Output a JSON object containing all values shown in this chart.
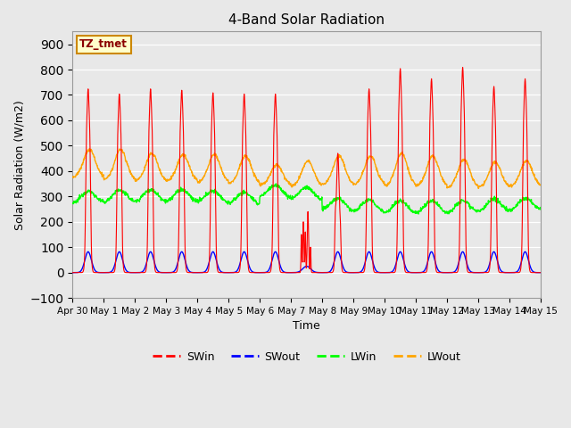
{
  "title": "4-Band Solar Radiation",
  "xlabel": "Time",
  "ylabel": "Solar Radiation (W/m2)",
  "ylim": [
    -100,
    950
  ],
  "yticks": [
    -100,
    0,
    100,
    200,
    300,
    400,
    500,
    600,
    700,
    800,
    900
  ],
  "xtick_labels": [
    "Apr 30",
    "May 1",
    "May 2",
    "May 3",
    "May 4",
    "May 5",
    "May 6",
    "May 7",
    "May 8",
    "May 9",
    "May 10",
    "May 11",
    "May 12",
    "May 13",
    "May 14",
    "May 15"
  ],
  "annotation_text": "TZ_tmet",
  "annotation_bg": "#ffffcc",
  "annotation_border": "#cc8800",
  "SWin_color": "red",
  "SWout_color": "blue",
  "LWin_color": "lime",
  "LWout_color": "orange",
  "fig_bg": "#e8e8e8",
  "plot_bg": "#e8e8e8",
  "n_days": 15,
  "SWin_peaks": [
    720,
    700,
    720,
    715,
    705,
    700,
    700,
    100,
    470,
    720,
    800,
    760,
    805,
    730,
    760
  ],
  "SWout_max": 85,
  "LWin_base": 285,
  "LWout_base": 380
}
